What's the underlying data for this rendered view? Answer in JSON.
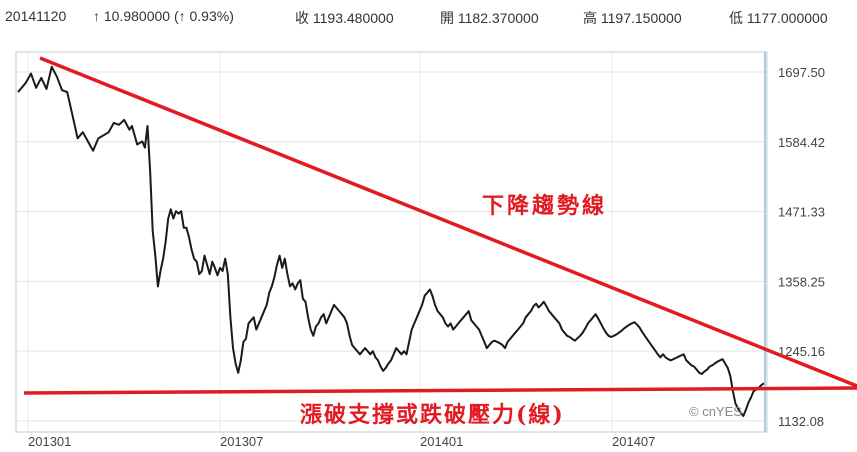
{
  "header": {
    "date": "20141120",
    "change": "↑ 10.980000 (↑ 0.93%)",
    "close": "收 1193.480000",
    "open": "開 1182.370000",
    "high": "高 1197.150000",
    "low": "低 1177.000000"
  },
  "chart_data": {
    "type": "line",
    "ylim": [
      1114,
      1730
    ],
    "y_ticks": [
      "1697.50",
      "1584.42",
      "1471.33",
      "1358.25",
      "1245.16",
      "1132.08"
    ],
    "y_tick_values": [
      1697.5,
      1584.42,
      1471.33,
      1358.25,
      1245.16,
      1132.08
    ],
    "x_ticks": [
      "201301",
      "201307",
      "201401",
      "201407"
    ],
    "grid": true,
    "watermark": "© cnYES",
    "series": [
      {
        "values": [
          [
            0,
            1665
          ],
          [
            6,
            1680
          ],
          [
            10,
            1695
          ],
          [
            14,
            1672
          ],
          [
            18,
            1688
          ],
          [
            22,
            1670
          ],
          [
            26,
            1706
          ],
          [
            30,
            1690
          ],
          [
            34,
            1668
          ],
          [
            38,
            1665
          ],
          [
            42,
            1628
          ],
          [
            46,
            1590
          ],
          [
            50,
            1600
          ],
          [
            54,
            1585
          ],
          [
            58,
            1570
          ],
          [
            62,
            1590
          ],
          [
            66,
            1595
          ],
          [
            70,
            1600
          ],
          [
            74,
            1615
          ],
          [
            78,
            1612
          ],
          [
            82,
            1620
          ],
          [
            86,
            1604
          ],
          [
            88,
            1610
          ],
          [
            92,
            1580
          ],
          [
            96,
            1585
          ],
          [
            98,
            1575
          ],
          [
            100,
            1610
          ],
          [
            102,
            1538
          ],
          [
            104,
            1440
          ],
          [
            106,
            1400
          ],
          [
            108,
            1350
          ],
          [
            110,
            1375
          ],
          [
            112,
            1395
          ],
          [
            114,
            1422
          ],
          [
            116,
            1460
          ],
          [
            118,
            1475
          ],
          [
            120,
            1460
          ],
          [
            122,
            1472
          ],
          [
            124,
            1468
          ],
          [
            126,
            1472
          ],
          [
            128,
            1445
          ],
          [
            130,
            1445
          ],
          [
            132,
            1430
          ],
          [
            134,
            1410
          ],
          [
            136,
            1395
          ],
          [
            138,
            1390
          ],
          [
            140,
            1370
          ],
          [
            142,
            1375
          ],
          [
            144,
            1400
          ],
          [
            146,
            1385
          ],
          [
            148,
            1370
          ],
          [
            150,
            1390
          ],
          [
            152,
            1380
          ],
          [
            154,
            1368
          ],
          [
            156,
            1380
          ],
          [
            158,
            1375
          ],
          [
            160,
            1395
          ],
          [
            162,
            1370
          ],
          [
            164,
            1300
          ],
          [
            166,
            1250
          ],
          [
            168,
            1225
          ],
          [
            170,
            1210
          ],
          [
            172,
            1230
          ],
          [
            174,
            1260
          ],
          [
            176,
            1265
          ],
          [
            178,
            1290
          ],
          [
            180,
            1295
          ],
          [
            182,
            1300
          ],
          [
            184,
            1280
          ],
          [
            186,
            1290
          ],
          [
            188,
            1300
          ],
          [
            190,
            1310
          ],
          [
            192,
            1320
          ],
          [
            194,
            1340
          ],
          [
            196,
            1350
          ],
          [
            198,
            1365
          ],
          [
            200,
            1385
          ],
          [
            202,
            1400
          ],
          [
            204,
            1380
          ],
          [
            206,
            1395
          ],
          [
            208,
            1370
          ],
          [
            210,
            1350
          ],
          [
            212,
            1355
          ],
          [
            214,
            1345
          ],
          [
            216,
            1355
          ],
          [
            218,
            1360
          ],
          [
            220,
            1330
          ],
          [
            222,
            1325
          ],
          [
            224,
            1300
          ],
          [
            226,
            1280
          ],
          [
            228,
            1270
          ],
          [
            230,
            1285
          ],
          [
            232,
            1290
          ],
          [
            234,
            1300
          ],
          [
            236,
            1305
          ],
          [
            238,
            1290
          ],
          [
            240,
            1300
          ],
          [
            242,
            1310
          ],
          [
            244,
            1320
          ],
          [
            246,
            1315
          ],
          [
            248,
            1310
          ],
          [
            250,
            1305
          ],
          [
            252,
            1300
          ],
          [
            254,
            1290
          ],
          [
            256,
            1270
          ],
          [
            258,
            1255
          ],
          [
            260,
            1250
          ],
          [
            262,
            1245
          ],
          [
            264,
            1240
          ],
          [
            266,
            1245
          ],
          [
            268,
            1250
          ],
          [
            270,
            1245
          ],
          [
            272,
            1240
          ],
          [
            274,
            1245
          ],
          [
            276,
            1235
          ],
          [
            278,
            1230
          ],
          [
            280,
            1220
          ],
          [
            282,
            1213
          ],
          [
            284,
            1218
          ],
          [
            286,
            1225
          ],
          [
            288,
            1230
          ],
          [
            290,
            1240
          ],
          [
            292,
            1250
          ],
          [
            294,
            1245
          ],
          [
            296,
            1240
          ],
          [
            298,
            1245
          ],
          [
            300,
            1240
          ],
          [
            302,
            1260
          ],
          [
            304,
            1280
          ],
          [
            306,
            1290
          ],
          [
            308,
            1300
          ],
          [
            310,
            1310
          ],
          [
            312,
            1320
          ],
          [
            314,
            1335
          ],
          [
            316,
            1340
          ],
          [
            318,
            1345
          ],
          [
            320,
            1335
          ],
          [
            322,
            1320
          ],
          [
            324,
            1310
          ],
          [
            326,
            1305
          ],
          [
            328,
            1300
          ],
          [
            330,
            1290
          ],
          [
            332,
            1285
          ],
          [
            334,
            1290
          ],
          [
            336,
            1280
          ],
          [
            338,
            1285
          ],
          [
            340,
            1290
          ],
          [
            342,
            1295
          ],
          [
            344,
            1300
          ],
          [
            346,
            1305
          ],
          [
            348,
            1310
          ],
          [
            350,
            1295
          ],
          [
            352,
            1290
          ],
          [
            354,
            1285
          ],
          [
            356,
            1280
          ],
          [
            358,
            1270
          ],
          [
            360,
            1260
          ],
          [
            362,
            1250
          ],
          [
            364,
            1255
          ],
          [
            366,
            1260
          ],
          [
            368,
            1262
          ],
          [
            370,
            1260
          ],
          [
            372,
            1258
          ],
          [
            374,
            1255
          ],
          [
            376,
            1250
          ],
          [
            378,
            1260
          ],
          [
            380,
            1265
          ],
          [
            382,
            1270
          ],
          [
            384,
            1275
          ],
          [
            386,
            1280
          ],
          [
            388,
            1285
          ],
          [
            390,
            1290
          ],
          [
            392,
            1300
          ],
          [
            394,
            1305
          ],
          [
            396,
            1310
          ],
          [
            398,
            1318
          ],
          [
            400,
            1322
          ],
          [
            402,
            1316
          ],
          [
            404,
            1320
          ],
          [
            406,
            1325
          ],
          [
            408,
            1318
          ],
          [
            410,
            1310
          ],
          [
            412,
            1305
          ],
          [
            414,
            1300
          ],
          [
            416,
            1295
          ],
          [
            418,
            1290
          ],
          [
            420,
            1280
          ],
          [
            422,
            1275
          ],
          [
            424,
            1270
          ],
          [
            426,
            1268
          ],
          [
            428,
            1265
          ],
          [
            430,
            1262
          ],
          [
            432,
            1266
          ],
          [
            434,
            1270
          ],
          [
            436,
            1275
          ],
          [
            438,
            1282
          ],
          [
            440,
            1290
          ],
          [
            442,
            1295
          ],
          [
            444,
            1300
          ],
          [
            446,
            1305
          ],
          [
            448,
            1298
          ],
          [
            450,
            1290
          ],
          [
            452,
            1282
          ],
          [
            454,
            1275
          ],
          [
            456,
            1270
          ],
          [
            458,
            1268
          ],
          [
            460,
            1270
          ],
          [
            462,
            1272
          ],
          [
            464,
            1275
          ],
          [
            466,
            1278
          ],
          [
            468,
            1282
          ],
          [
            470,
            1285
          ],
          [
            472,
            1288
          ],
          [
            474,
            1290
          ],
          [
            476,
            1292
          ],
          [
            478,
            1288
          ],
          [
            480,
            1283
          ],
          [
            482,
            1276
          ],
          [
            484,
            1270
          ],
          [
            486,
            1264
          ],
          [
            488,
            1258
          ],
          [
            490,
            1252
          ],
          [
            492,
            1246
          ],
          [
            494,
            1240
          ],
          [
            496,
            1235
          ],
          [
            498,
            1240
          ],
          [
            500,
            1235
          ],
          [
            502,
            1232
          ],
          [
            504,
            1230
          ],
          [
            506,
            1232
          ],
          [
            508,
            1234
          ],
          [
            510,
            1236
          ],
          [
            512,
            1238
          ],
          [
            514,
            1240
          ],
          [
            516,
            1230
          ],
          [
            518,
            1226
          ],
          [
            520,
            1222
          ],
          [
            522,
            1220
          ],
          [
            524,
            1215
          ],
          [
            526,
            1210
          ],
          [
            528,
            1208
          ],
          [
            530,
            1212
          ],
          [
            532,
            1215
          ],
          [
            534,
            1220
          ],
          [
            536,
            1222
          ],
          [
            538,
            1225
          ],
          [
            540,
            1228
          ],
          [
            542,
            1230
          ],
          [
            544,
            1232
          ],
          [
            546,
            1225
          ],
          [
            548,
            1218
          ],
          [
            550,
            1205
          ],
          [
            552,
            1180
          ],
          [
            554,
            1160
          ],
          [
            556,
            1152
          ],
          [
            558,
            1145
          ],
          [
            560,
            1140
          ],
          [
            562,
            1150
          ],
          [
            564,
            1162
          ],
          [
            566,
            1170
          ],
          [
            568,
            1180
          ],
          [
            570,
            1183
          ],
          [
            572,
            1186
          ],
          [
            574,
            1190
          ],
          [
            576,
            1193
          ]
        ]
      }
    ],
    "annotations": [
      {
        "label": "下降趨勢線",
        "color": "#e21b22"
      },
      {
        "label": "漲破支撐或跌破壓力(線)",
        "color": "#e21b22"
      }
    ]
  }
}
